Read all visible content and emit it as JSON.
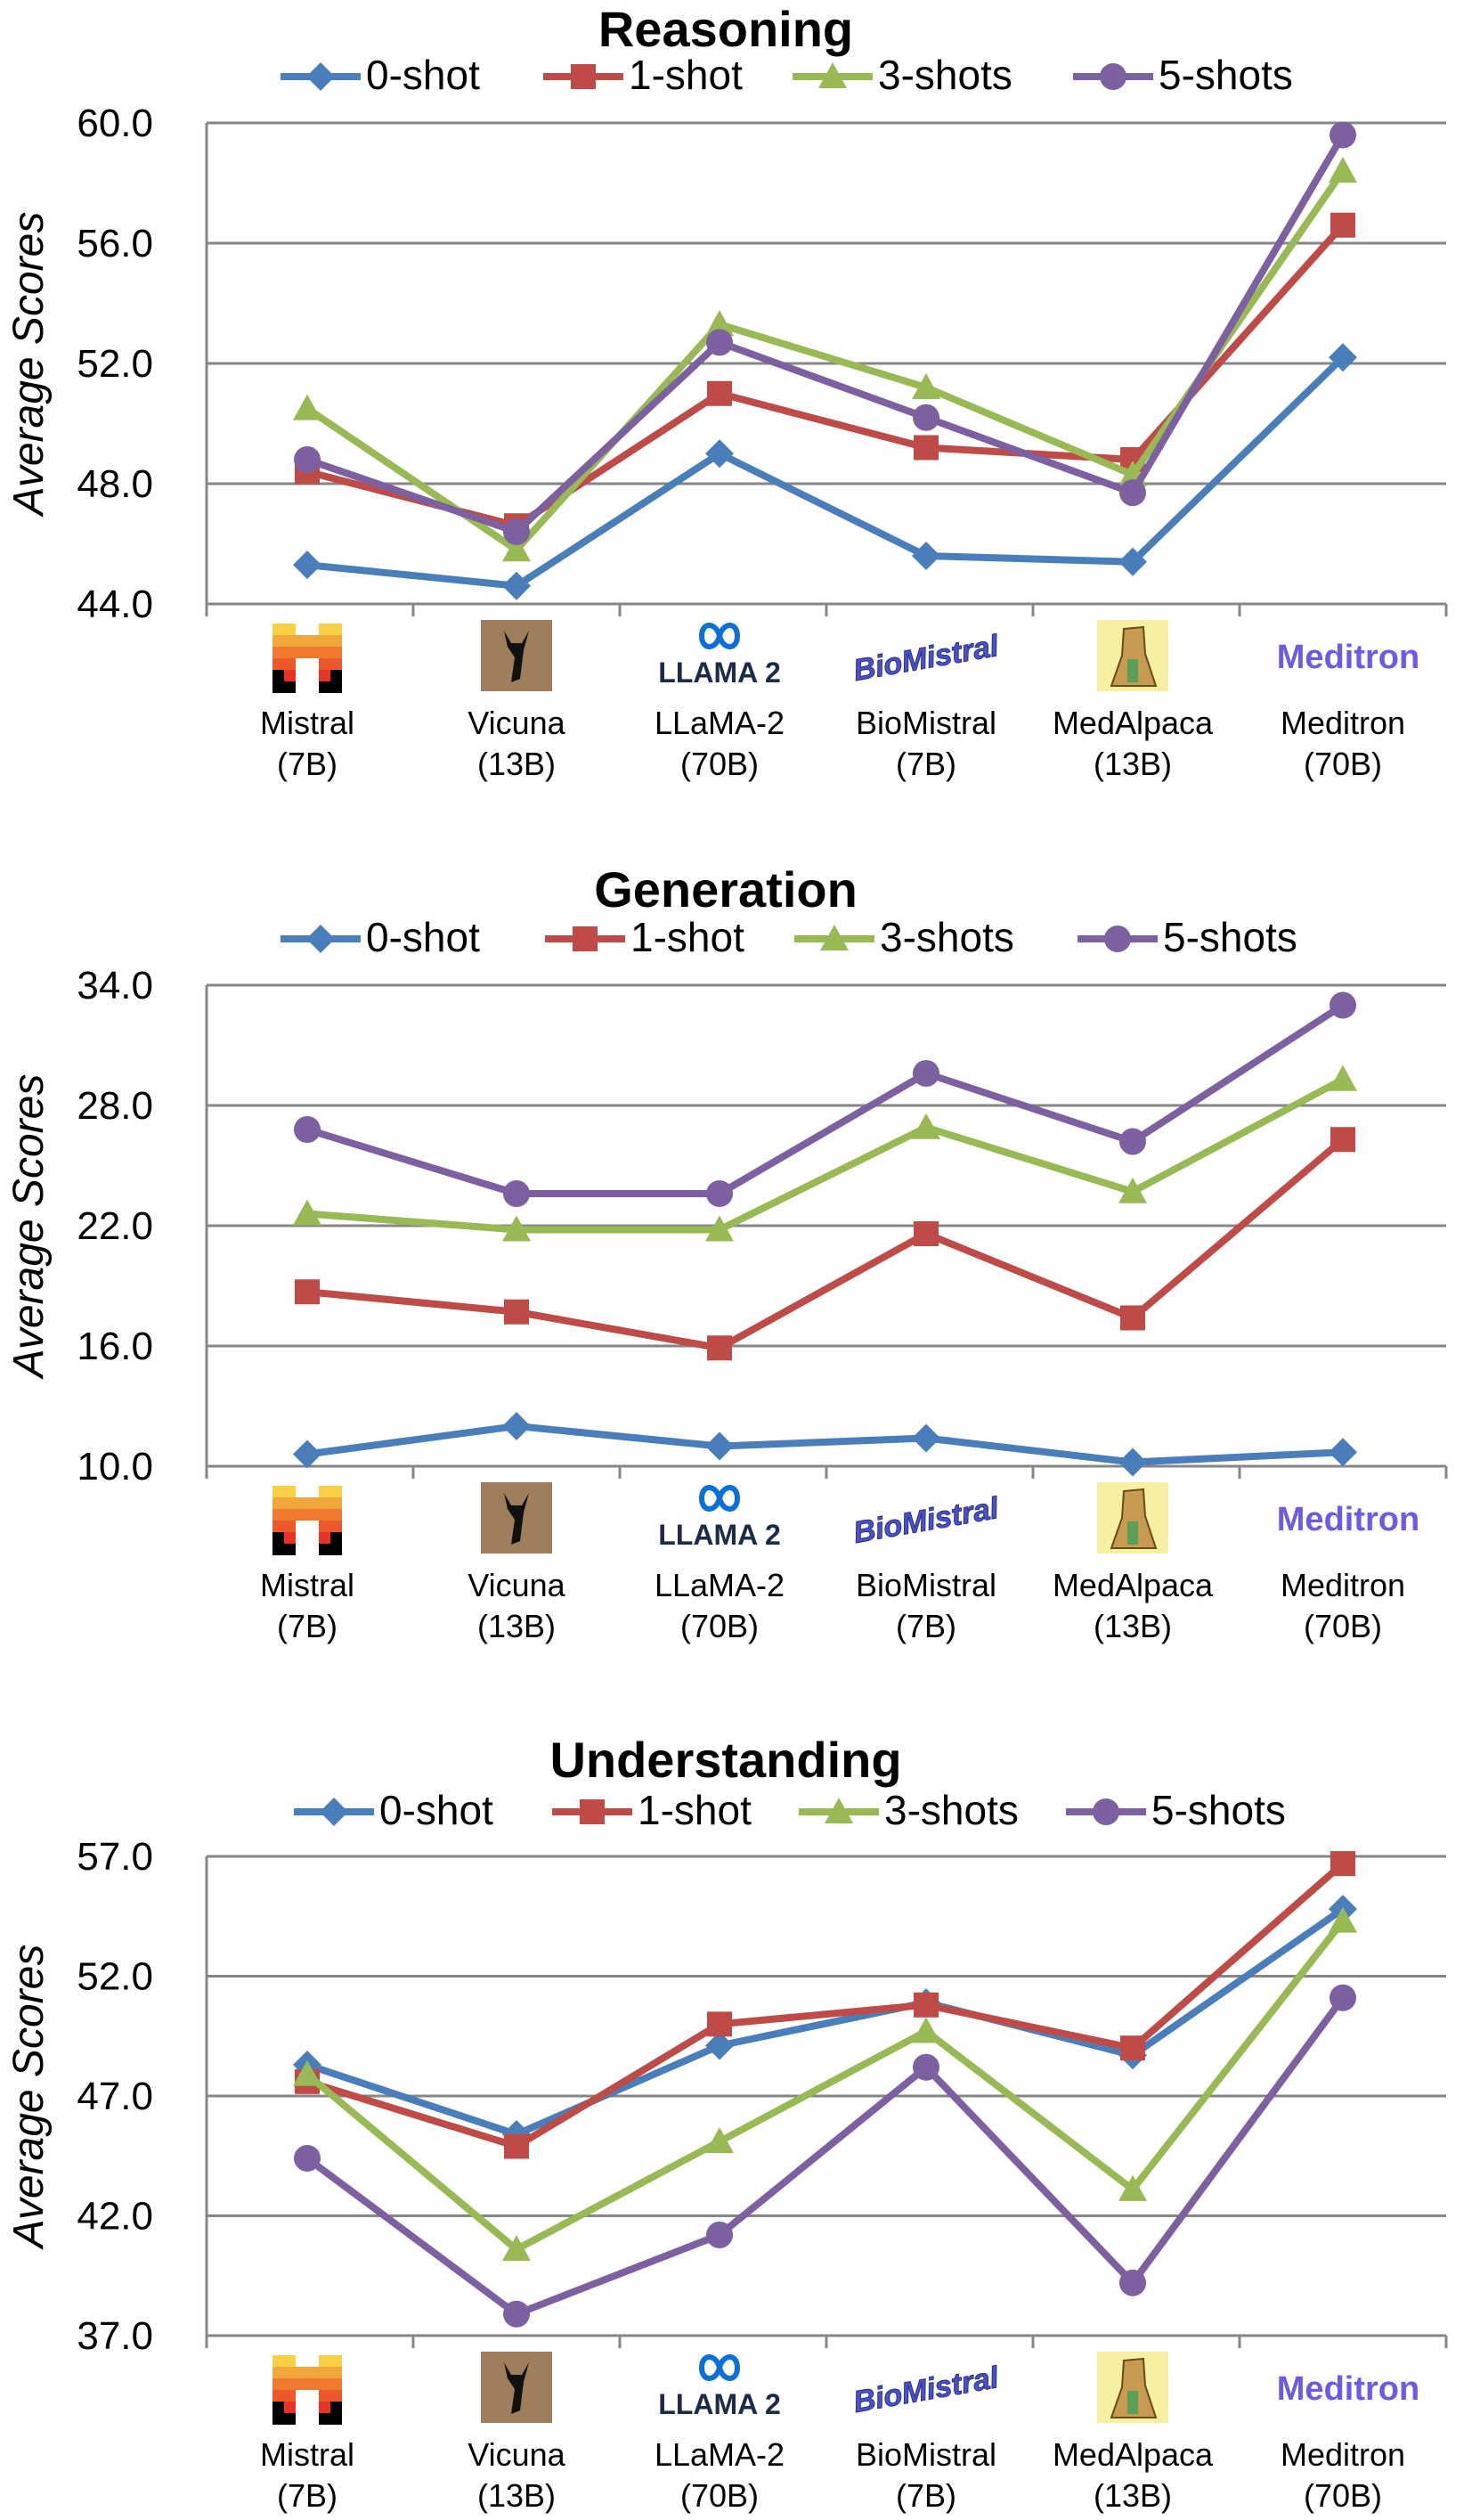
{
  "series_colors": {
    "0-shot": "#4a7ebb",
    "1-shot": "#be4b48",
    "3-shots": "#98b954",
    "5-shots": "#7d60a0"
  },
  "icons": [
    "mistral-logo-icon",
    "vicuna-logo-icon",
    "llama2-logo-icon",
    "biomistral-logo-icon",
    "medalpaca-logo-icon",
    "meditron-logo-icon"
  ],
  "logos": {
    "llama": "LLAMA 2",
    "biomistral": "BioMistral",
    "meditron": "Meditron"
  },
  "chart_data": [
    {
      "type": "line",
      "title": "Reasoning",
      "ylabel": "Average Scores",
      "ylim": [
        44.0,
        60.0
      ],
      "yticks": [
        "60.0",
        "56.0",
        "52.0",
        "48.0",
        "44.0"
      ],
      "categories": [
        {
          "name": "Mistral",
          "size": "(7B)"
        },
        {
          "name": "Vicuna",
          "size": "(13B)"
        },
        {
          "name": "LLaMA-2",
          "size": "(70B)"
        },
        {
          "name": "BioMistral",
          "size": "(7B)"
        },
        {
          "name": "MedAlpaca",
          "size": "(13B)"
        },
        {
          "name": "Meditron",
          "size": "(70B)"
        }
      ],
      "series": [
        {
          "name": "0-shot",
          "marker": "diamond",
          "values": [
            45.3,
            44.6,
            49.0,
            45.6,
            45.4,
            52.2
          ]
        },
        {
          "name": "1-shot",
          "marker": "square",
          "values": [
            48.4,
            46.6,
            51.0,
            49.2,
            48.8,
            56.6
          ]
        },
        {
          "name": "3-shots",
          "marker": "triangle",
          "values": [
            50.5,
            45.8,
            53.3,
            51.2,
            48.3,
            58.4
          ]
        },
        {
          "name": "5-shots",
          "marker": "circle",
          "values": [
            48.8,
            46.4,
            52.7,
            50.2,
            47.7,
            59.6
          ]
        }
      ]
    },
    {
      "type": "line",
      "title": "Generation",
      "ylabel": "Average Scores",
      "ylim": [
        10.0,
        34.0
      ],
      "yticks": [
        "34.0",
        "28.0",
        "22.0",
        "16.0",
        "10.0"
      ],
      "categories": [
        {
          "name": "Mistral",
          "size": "(7B)"
        },
        {
          "name": "Vicuna",
          "size": "(13B)"
        },
        {
          "name": "LLaMA-2",
          "size": "(70B)"
        },
        {
          "name": "BioMistral",
          "size": "(7B)"
        },
        {
          "name": "MedAlpaca",
          "size": "(13B)"
        },
        {
          "name": "Meditron",
          "size": "(70B)"
        }
      ],
      "series": [
        {
          "name": "0-shot",
          "marker": "diamond",
          "values": [
            10.6,
            12.0,
            11.0,
            11.4,
            10.2,
            10.7
          ]
        },
        {
          "name": "1-shot",
          "marker": "square",
          "values": [
            18.7,
            17.7,
            15.9,
            21.6,
            17.4,
            26.3
          ]
        },
        {
          "name": "3-shots",
          "marker": "triangle",
          "values": [
            22.6,
            21.8,
            21.8,
            26.9,
            23.7,
            29.3
          ]
        },
        {
          "name": "5-shots",
          "marker": "circle",
          "values": [
            26.8,
            23.6,
            23.6,
            29.6,
            26.2,
            33.0
          ]
        }
      ]
    },
    {
      "type": "line",
      "title": "Understanding",
      "ylabel": "Average Scores",
      "ylim": [
        37.0,
        57.0
      ],
      "yticks": [
        "57.0",
        "52.0",
        "47.0",
        "42.0",
        "37.0"
      ],
      "categories": [
        {
          "name": "Mistral",
          "size": "(7B)"
        },
        {
          "name": "Vicuna",
          "size": "(13B)"
        },
        {
          "name": "LLaMA-2",
          "size": "(70B)"
        },
        {
          "name": "BioMistral",
          "size": "(7B)"
        },
        {
          "name": "MedAlpaca",
          "size": "(13B)"
        },
        {
          "name": "Meditron",
          "size": "(70B)"
        }
      ],
      "series": [
        {
          "name": "0-shot",
          "marker": "diamond",
          "values": [
            48.3,
            45.4,
            49.1,
            50.9,
            48.7,
            54.8
          ]
        },
        {
          "name": "1-shot",
          "marker": "square",
          "values": [
            47.6,
            44.9,
            50.0,
            50.8,
            49.0,
            56.7
          ]
        },
        {
          "name": "3-shots",
          "marker": "triangle",
          "values": [
            47.9,
            40.6,
            45.1,
            49.7,
            43.1,
            54.3
          ]
        },
        {
          "name": "5-shots",
          "marker": "circle",
          "values": [
            44.4,
            37.9,
            41.2,
            48.2,
            39.2,
            51.1
          ]
        }
      ]
    }
  ]
}
